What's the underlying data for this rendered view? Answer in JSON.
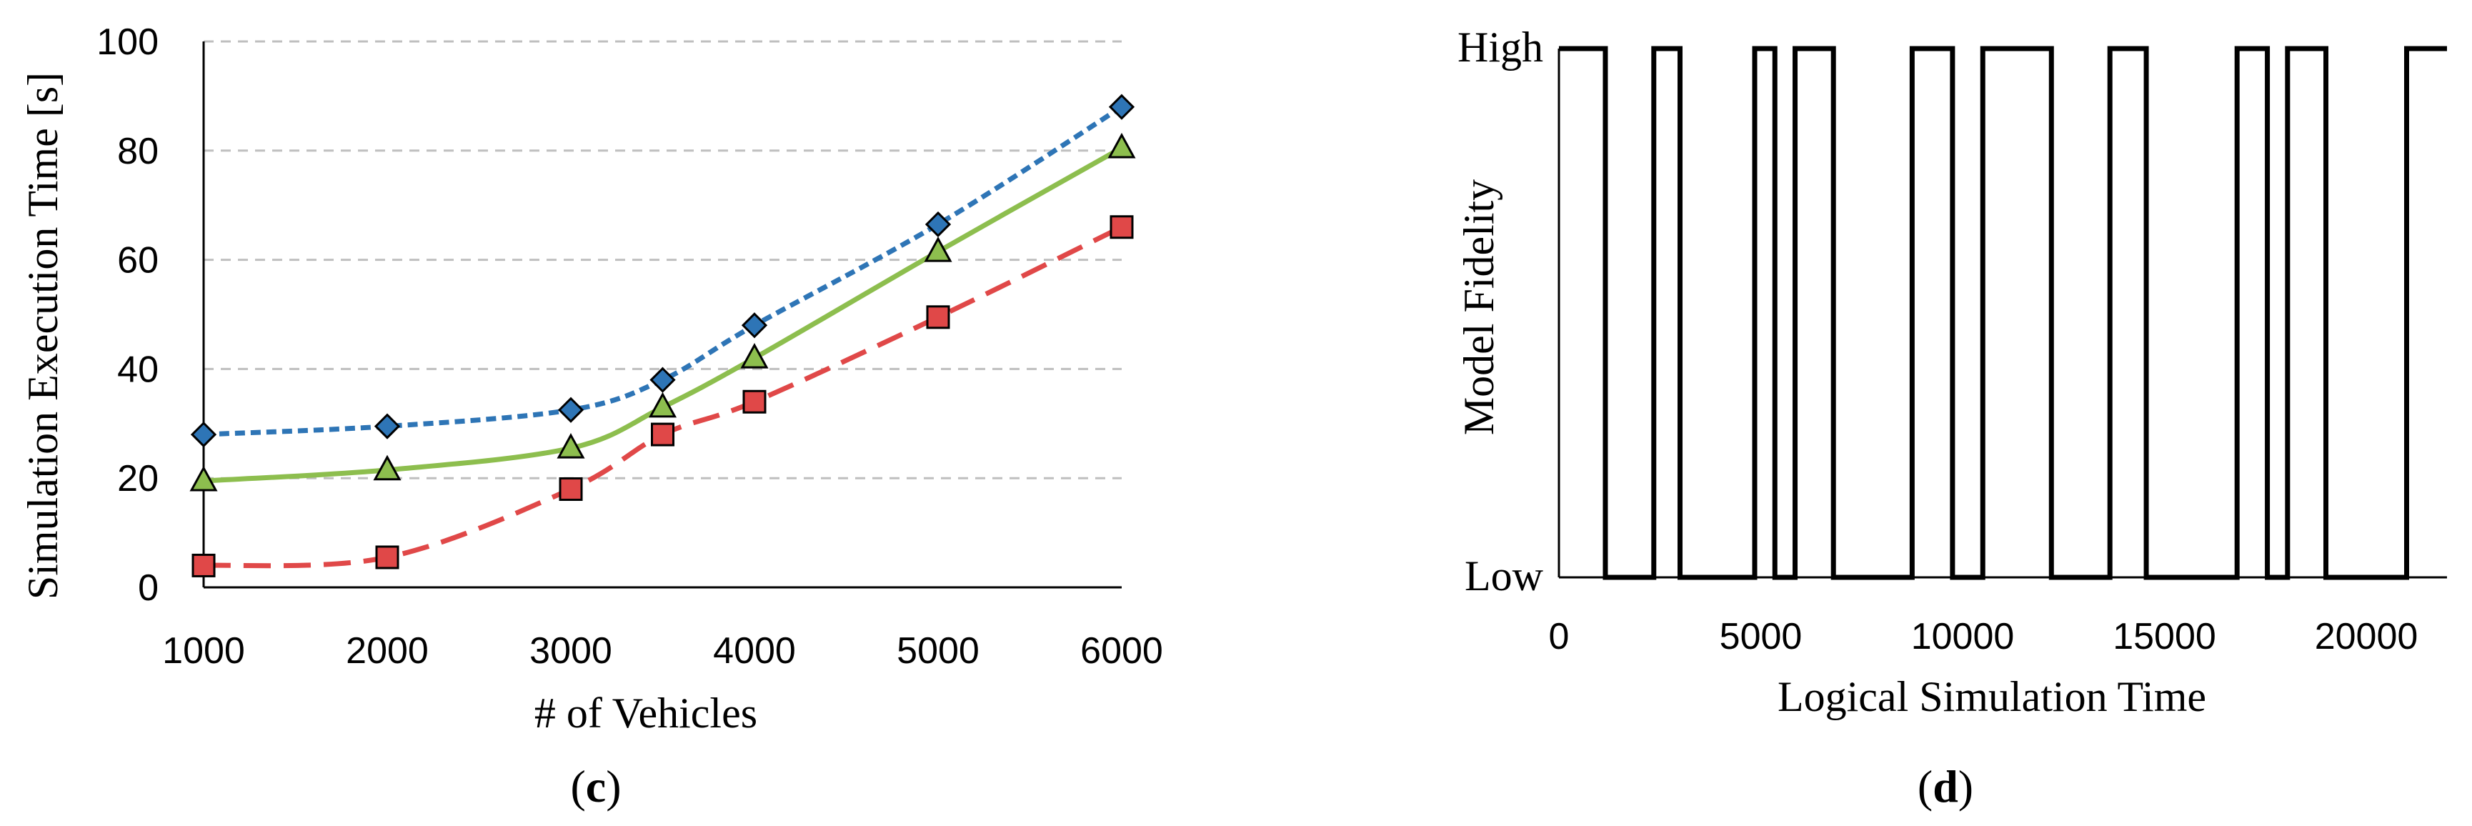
{
  "chart_data": [
    {
      "type": "line",
      "panel_label_open": "(",
      "panel_label": "c",
      "panel_label_close": ")",
      "title": "",
      "xlabel": "# of Vehicles",
      "ylabel": "Simulation Execution Time [s]",
      "xlim": [
        1000,
        6000
      ],
      "ylim": [
        0,
        100
      ],
      "xticks": [
        1000,
        2000,
        3000,
        4000,
        5000,
        6000
      ],
      "yticks": [
        0,
        20,
        40,
        60,
        80,
        100
      ],
      "grid": "horizontal dashed",
      "x": [
        1000,
        2000,
        3000,
        3500,
        4000,
        5000,
        6000
      ],
      "series": [
        {
          "name": "blue-diamond-dotted",
          "color": "#2E75B6",
          "marker": "diamond",
          "values": [
            28,
            29.5,
            32.5,
            38,
            48,
            66.5,
            88
          ]
        },
        {
          "name": "green-triangle-solid",
          "color": "#8DBE4E",
          "marker": "triangle",
          "values": [
            19.5,
            21.5,
            25.5,
            33,
            42,
            61.5,
            80.5
          ]
        },
        {
          "name": "red-square-dashed",
          "color": "#E04848",
          "marker": "square",
          "values": [
            4,
            5.5,
            18,
            28,
            34,
            49.5,
            66
          ]
        }
      ]
    },
    {
      "type": "line",
      "panel_label_open": "(",
      "panel_label": "d",
      "panel_label_close": ")",
      "title": "",
      "xlabel": "Logical Simulation Time",
      "ylabel": "Model Fidelity",
      "xlim": [
        0,
        22000
      ],
      "xticks": [
        0,
        5000,
        10000,
        15000,
        20000
      ],
      "ycategories": [
        "Low",
        "High"
      ],
      "series": [
        {
          "name": "fidelity",
          "color": "#000000",
          "step": true,
          "transitions": [
            0,
            1150,
            2350,
            3000,
            4850,
            5350,
            5850,
            6800,
            8750,
            9750,
            10500,
            12200,
            13650,
            14550,
            16800,
            17550,
            18050,
            19000,
            21000
          ],
          "start_state": "High",
          "end_x": 22000
        }
      ]
    }
  ]
}
